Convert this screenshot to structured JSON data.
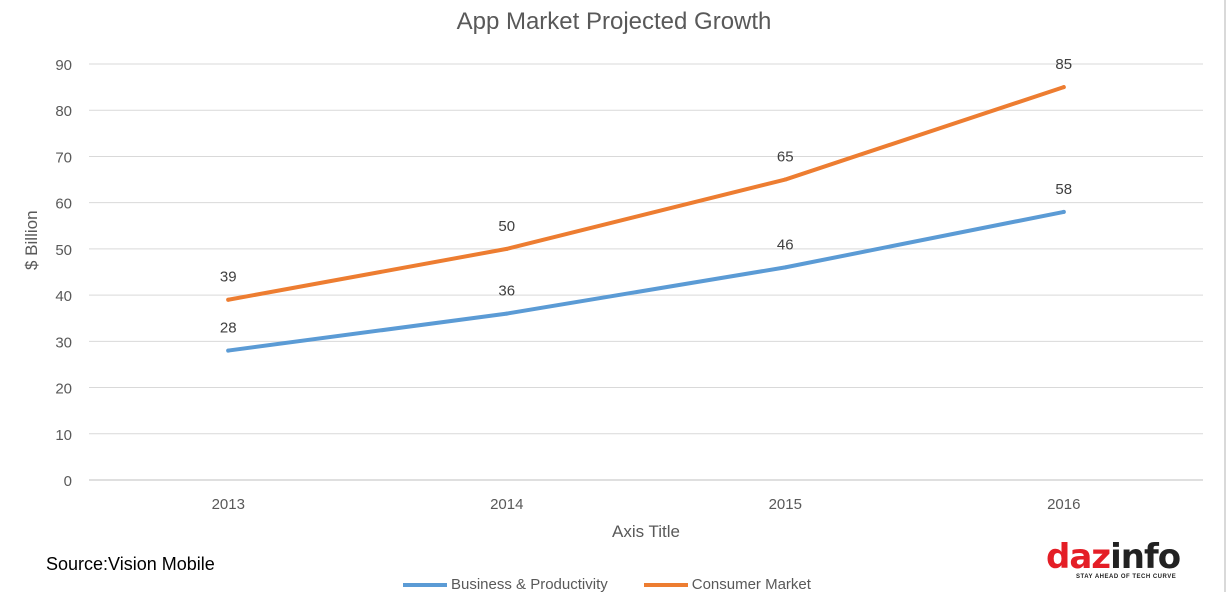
{
  "chart_data": {
    "type": "line",
    "title": "App Market Projected Growth",
    "xlabel": "Axis Title",
    "ylabel": "$ Billion",
    "categories": [
      "2013",
      "2014",
      "2015",
      "2016"
    ],
    "ylim": [
      0,
      90
    ],
    "yticks": [
      0,
      10,
      20,
      30,
      40,
      50,
      60,
      70,
      80,
      90
    ],
    "grid": true,
    "legend_position": "bottom",
    "series": [
      {
        "name": "Business & Productivity",
        "values": [
          28,
          36,
          46,
          58
        ],
        "color": "#5b9bd5"
      },
      {
        "name": "Consumer Market",
        "values": [
          39,
          50,
          65,
          85
        ],
        "color": "#ed7d31"
      }
    ]
  },
  "source_note": "Source:Vision  Mobile",
  "logo": {
    "main": "daz",
    "highlight": "info",
    "tagline": "STAY AHEAD OF TECH CURVE"
  }
}
